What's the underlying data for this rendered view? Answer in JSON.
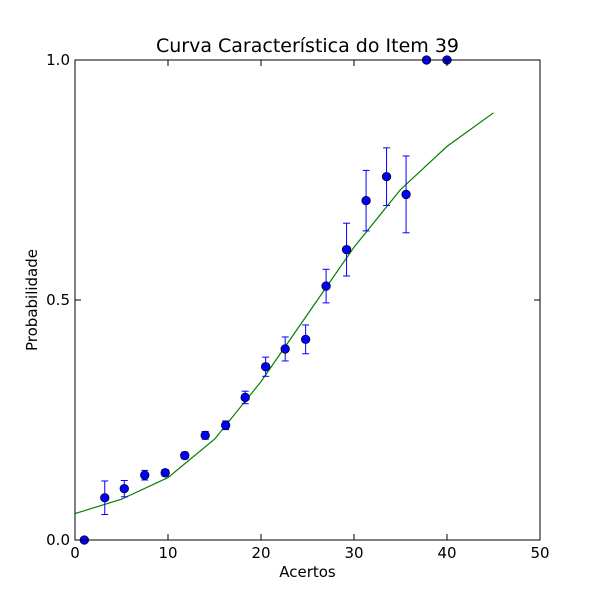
{
  "chart_data": {
    "type": "scatter",
    "title": "Curva Característica do Item 39",
    "xlabel": "Acertos",
    "ylabel": "Probabilidade",
    "xlim": [
      0,
      50
    ],
    "ylim": [
      0.0,
      1.0
    ],
    "x_ticks": [
      0,
      10,
      20,
      30,
      40,
      50
    ],
    "x_tick_labels": [
      "0",
      "10",
      "20",
      "30",
      "40",
      "50"
    ],
    "y_ticks": [
      0.0,
      0.5,
      1.0
    ],
    "y_tick_labels": [
      "0.0",
      "0.5",
      "1.0"
    ],
    "grid": false,
    "legend": "none",
    "series": [
      {
        "kind": "points_with_error_bars",
        "color": "#0000ff",
        "points": [
          {
            "x": 1.0,
            "y": 0.0,
            "err_low": 0.0,
            "err_high": 0.0
          },
          {
            "x": 3.2,
            "y": 0.088,
            "err_low": 0.035,
            "err_high": 0.035
          },
          {
            "x": 5.3,
            "y": 0.107,
            "err_low": 0.017,
            "err_high": 0.017
          },
          {
            "x": 7.5,
            "y": 0.135,
            "err_low": 0.01,
            "err_high": 0.01
          },
          {
            "x": 9.7,
            "y": 0.14,
            "err_low": 0.007,
            "err_high": 0.007
          },
          {
            "x": 11.8,
            "y": 0.176,
            "err_low": 0.007,
            "err_high": 0.007
          },
          {
            "x": 14.0,
            "y": 0.218,
            "err_low": 0.008,
            "err_high": 0.008
          },
          {
            "x": 16.2,
            "y": 0.239,
            "err_low": 0.009,
            "err_high": 0.009
          },
          {
            "x": 18.3,
            "y": 0.297,
            "err_low": 0.013,
            "err_high": 0.013
          },
          {
            "x": 20.5,
            "y": 0.361,
            "err_low": 0.02,
            "err_high": 0.02
          },
          {
            "x": 22.6,
            "y": 0.398,
            "err_low": 0.025,
            "err_high": 0.025
          },
          {
            "x": 24.8,
            "y": 0.418,
            "err_low": 0.03,
            "err_high": 0.03
          },
          {
            "x": 27.0,
            "y": 0.529,
            "err_low": 0.035,
            "err_high": 0.035
          },
          {
            "x": 29.2,
            "y": 0.605,
            "err_low": 0.055,
            "err_high": 0.055
          },
          {
            "x": 31.3,
            "y": 0.707,
            "err_low": 0.063,
            "err_high": 0.063
          },
          {
            "x": 33.5,
            "y": 0.757,
            "err_low": 0.06,
            "err_high": 0.06
          },
          {
            "x": 35.6,
            "y": 0.72,
            "err_low": 0.08,
            "err_high": 0.08
          },
          {
            "x": 37.8,
            "y": 1.0,
            "err_low": 0.0,
            "err_high": 0.0
          },
          {
            "x": 40.0,
            "y": 1.0,
            "err_low": 0.0,
            "err_high": 0.0
          }
        ]
      },
      {
        "kind": "line",
        "color": "#008000",
        "points": [
          {
            "x": 0,
            "y": 0.055
          },
          {
            "x": 5,
            "y": 0.085
          },
          {
            "x": 10,
            "y": 0.13
          },
          {
            "x": 15,
            "y": 0.21
          },
          {
            "x": 20,
            "y": 0.33
          },
          {
            "x": 25,
            "y": 0.47
          },
          {
            "x": 30,
            "y": 0.61
          },
          {
            "x": 35,
            "y": 0.73
          },
          {
            "x": 40,
            "y": 0.82
          },
          {
            "x": 45,
            "y": 0.89
          }
        ]
      }
    ]
  }
}
